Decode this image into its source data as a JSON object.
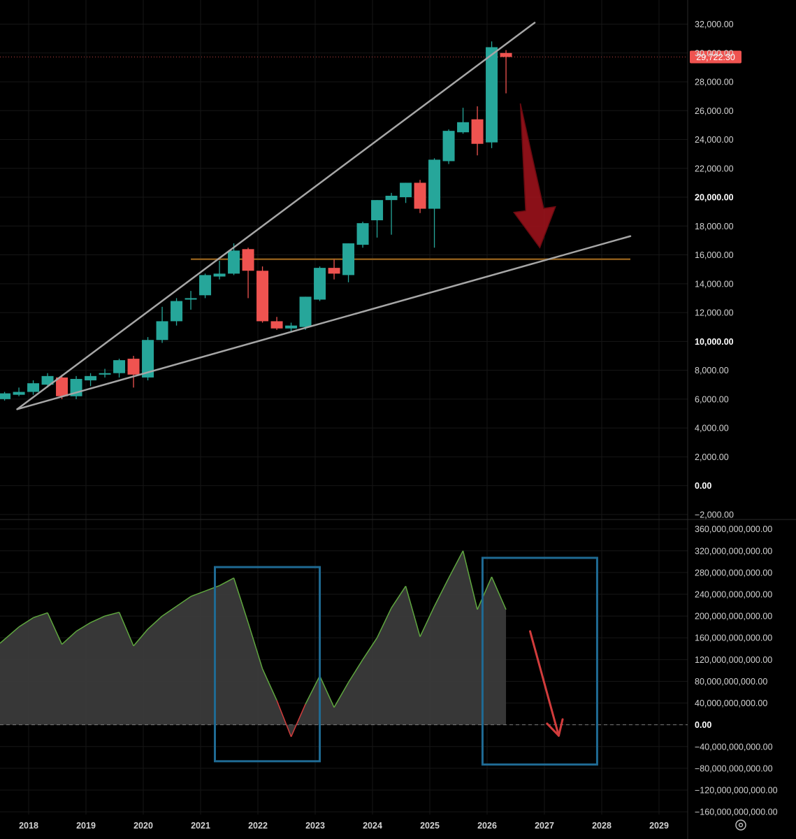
{
  "chart_data": [
    {
      "type": "candlestick",
      "title": "",
      "x_axis_labels": [
        "2018",
        "2019",
        "2020",
        "2021",
        "2022",
        "2023",
        "2024",
        "2025",
        "2026",
        "2027",
        "2028",
        "2029"
      ],
      "y_axis_labels": [
        "32,000.00",
        "30,000.00",
        "28,000.00",
        "26,000.00",
        "24,000.00",
        "22,000.00",
        "20,000.00",
        "18,000.00",
        "16,000.00",
        "14,000.00",
        "12,000.00",
        "10,000.00",
        "8,000.00",
        "6,000.00",
        "4,000.00",
        "2,000.00",
        "0.00",
        "−2,000.00"
      ],
      "ylim": [
        -2200,
        32800
      ],
      "xlim": [
        2017.5,
        2029.5
      ],
      "colors": {
        "up": "#26a69a",
        "down": "#ef5350"
      },
      "last_price": {
        "label": "29,722.30",
        "value": 29722.3,
        "color": "#ef5350"
      },
      "candles": [
        {
          "t": 2017.58,
          "o": 6000,
          "h": 6500,
          "l": 5900,
          "c": 6400
        },
        {
          "t": 2017.83,
          "o": 6300,
          "h": 6800,
          "l": 6200,
          "c": 6500
        },
        {
          "t": 2018.08,
          "o": 6500,
          "h": 7300,
          "l": 6300,
          "c": 7100
        },
        {
          "t": 2018.33,
          "o": 7000,
          "h": 7800,
          "l": 6800,
          "c": 7600
        },
        {
          "t": 2018.58,
          "o": 7500,
          "h": 7700,
          "l": 6000,
          "c": 6200
        },
        {
          "t": 2018.83,
          "o": 6200,
          "h": 7600,
          "l": 6000,
          "c": 7400
        },
        {
          "t": 2019.08,
          "o": 7300,
          "h": 7800,
          "l": 6900,
          "c": 7600
        },
        {
          "t": 2019.33,
          "o": 7700,
          "h": 8100,
          "l": 7500,
          "c": 7800
        },
        {
          "t": 2019.58,
          "o": 7800,
          "h": 8800,
          "l": 7500,
          "c": 8700
        },
        {
          "t": 2019.83,
          "o": 8800,
          "h": 9000,
          "l": 6800,
          "c": 7700
        },
        {
          "t": 2020.08,
          "o": 7500,
          "h": 10300,
          "l": 7300,
          "c": 10100
        },
        {
          "t": 2020.33,
          "o": 10100,
          "h": 12400,
          "l": 9900,
          "c": 11400
        },
        {
          "t": 2020.58,
          "o": 11400,
          "h": 13000,
          "l": 11100,
          "c": 12800
        },
        {
          "t": 2020.83,
          "o": 12900,
          "h": 13500,
          "l": 12200,
          "c": 13000
        },
        {
          "t": 2021.08,
          "o": 13200,
          "h": 14700,
          "l": 13000,
          "c": 14600
        },
        {
          "t": 2021.33,
          "o": 14500,
          "h": 15600,
          "l": 14300,
          "c": 14700
        },
        {
          "t": 2021.58,
          "o": 14700,
          "h": 16800,
          "l": 14600,
          "c": 16300
        },
        {
          "t": 2021.83,
          "o": 16400,
          "h": 16500,
          "l": 13000,
          "c": 14900
        },
        {
          "t": 2022.08,
          "o": 14900,
          "h": 15200,
          "l": 11300,
          "c": 11400
        },
        {
          "t": 2022.33,
          "o": 11400,
          "h": 11700,
          "l": 10800,
          "c": 10900
        },
        {
          "t": 2022.58,
          "o": 10900,
          "h": 11300,
          "l": 10700,
          "c": 11100
        },
        {
          "t": 2022.83,
          "o": 11000,
          "h": 13100,
          "l": 10800,
          "c": 13100
        },
        {
          "t": 2023.08,
          "o": 12900,
          "h": 15200,
          "l": 12800,
          "c": 15100
        },
        {
          "t": 2023.33,
          "o": 15100,
          "h": 15700,
          "l": 14300,
          "c": 14700
        },
        {
          "t": 2023.58,
          "o": 14600,
          "h": 16800,
          "l": 14100,
          "c": 16800
        },
        {
          "t": 2023.83,
          "o": 16700,
          "h": 18300,
          "l": 16500,
          "c": 18200
        },
        {
          "t": 2024.08,
          "o": 18400,
          "h": 19800,
          "l": 17200,
          "c": 19800
        },
        {
          "t": 2024.33,
          "o": 19800,
          "h": 20300,
          "l": 17400,
          "c": 20100
        },
        {
          "t": 2024.58,
          "o": 20000,
          "h": 21000,
          "l": 19600,
          "c": 21000
        },
        {
          "t": 2024.83,
          "o": 21000,
          "h": 21200,
          "l": 18900,
          "c": 19200
        },
        {
          "t": 2025.08,
          "o": 19200,
          "h": 22700,
          "l": 16500,
          "c": 22600
        },
        {
          "t": 2025.33,
          "o": 22500,
          "h": 24700,
          "l": 22300,
          "c": 24600
        },
        {
          "t": 2025.58,
          "o": 24500,
          "h": 26200,
          "l": 24400,
          "c": 25200
        },
        {
          "t": 2025.83,
          "o": 25400,
          "h": 26300,
          "l": 22900,
          "c": 23700
        },
        {
          "t": 2026.08,
          "o": 23800,
          "h": 30800,
          "l": 23400,
          "c": 30400
        },
        {
          "t": 2026.33,
          "o": 30000,
          "h": 30200,
          "l": 27200,
          "c": 29722
        }
      ],
      "overlays": {
        "upper_trendline": {
          "from": [
            2017.8,
            5300
          ],
          "to": [
            2026.83,
            32100
          ],
          "color": "#a6a6a6"
        },
        "lower_trendline": {
          "from": [
            2017.8,
            5300
          ],
          "to": [
            2028.5,
            17300
          ],
          "color": "#a6a6a6"
        },
        "horizontal_level": {
          "from": 2020.83,
          "to": 2028.5,
          "value": 15700,
          "color": "#8a5a1a"
        },
        "arrow": {
          "from": [
            2026.58,
            26500
          ],
          "to": [
            2026.92,
            16500
          ],
          "color": "#a3131c"
        }
      }
    },
    {
      "type": "area",
      "title": "",
      "y_axis_labels": [
        "360,000,000,000.00",
        "320,000,000,000.00",
        "280,000,000,000.00",
        "240,000,000,000.00",
        "200,000,000,000.00",
        "160,000,000,000.00",
        "120,000,000,000.00",
        "80,000,000,000.00",
        "40,000,000,000.00",
        "0.00",
        "−40,000,000,000.00",
        "−80,000,000,000.00",
        "−120,000,000,000.00",
        "−160,000,000,000.00"
      ],
      "ylim": [
        -165000000000,
        375000000000
      ],
      "colors": {
        "line": "#5fa63f",
        "fill": "#3a3a3a",
        "negative_line": "#d23c3c"
      },
      "zero_line": true,
      "points": [
        {
          "t": 2017.5,
          "v": 150000000000
        },
        {
          "t": 2017.83,
          "v": 180000000000
        },
        {
          "t": 2018.08,
          "v": 197000000000
        },
        {
          "t": 2018.33,
          "v": 206000000000
        },
        {
          "t": 2018.58,
          "v": 148000000000
        },
        {
          "t": 2018.83,
          "v": 172000000000
        },
        {
          "t": 2019.08,
          "v": 188000000000
        },
        {
          "t": 2019.33,
          "v": 200000000000
        },
        {
          "t": 2019.58,
          "v": 207000000000
        },
        {
          "t": 2019.83,
          "v": 145000000000
        },
        {
          "t": 2020.08,
          "v": 176000000000
        },
        {
          "t": 2020.33,
          "v": 200000000000
        },
        {
          "t": 2020.58,
          "v": 218000000000
        },
        {
          "t": 2020.83,
          "v": 236000000000
        },
        {
          "t": 2021.08,
          "v": 246000000000
        },
        {
          "t": 2021.33,
          "v": 256000000000
        },
        {
          "t": 2021.58,
          "v": 270000000000
        },
        {
          "t": 2021.83,
          "v": 188000000000
        },
        {
          "t": 2022.08,
          "v": 103000000000
        },
        {
          "t": 2022.33,
          "v": 45000000000
        },
        {
          "t": 2022.58,
          "v": -22000000000
        },
        {
          "t": 2022.83,
          "v": 38000000000
        },
        {
          "t": 2023.08,
          "v": 90000000000
        },
        {
          "t": 2023.33,
          "v": 32000000000
        },
        {
          "t": 2023.58,
          "v": 78000000000
        },
        {
          "t": 2023.83,
          "v": 120000000000
        },
        {
          "t": 2024.08,
          "v": 160000000000
        },
        {
          "t": 2024.33,
          "v": 215000000000
        },
        {
          "t": 2024.58,
          "v": 255000000000
        },
        {
          "t": 2024.83,
          "v": 162000000000
        },
        {
          "t": 2025.08,
          "v": 218000000000
        },
        {
          "t": 2025.33,
          "v": 270000000000
        },
        {
          "t": 2025.58,
          "v": 320000000000
        },
        {
          "t": 2025.83,
          "v": 212000000000
        },
        {
          "t": 2026.08,
          "v": 272000000000
        },
        {
          "t": 2026.33,
          "v": 212000000000
        }
      ],
      "overlays": {
        "box_1": {
          "t_from": 2021.25,
          "t_to": 2023.08,
          "v_top": 290000000000,
          "v_bottom": -67000000000,
          "color": "#1f6a93"
        },
        "box_2": {
          "t_from": 2025.92,
          "t_to": 2027.92,
          "v_top": 307000000000,
          "v_bottom": -73000000000,
          "color": "#1f6a93"
        },
        "arrow": {
          "from": [
            2026.75,
            172000000000
          ],
          "to": [
            2027.25,
            -20000000000
          ],
          "color": "#d23c3c"
        }
      }
    }
  ]
}
